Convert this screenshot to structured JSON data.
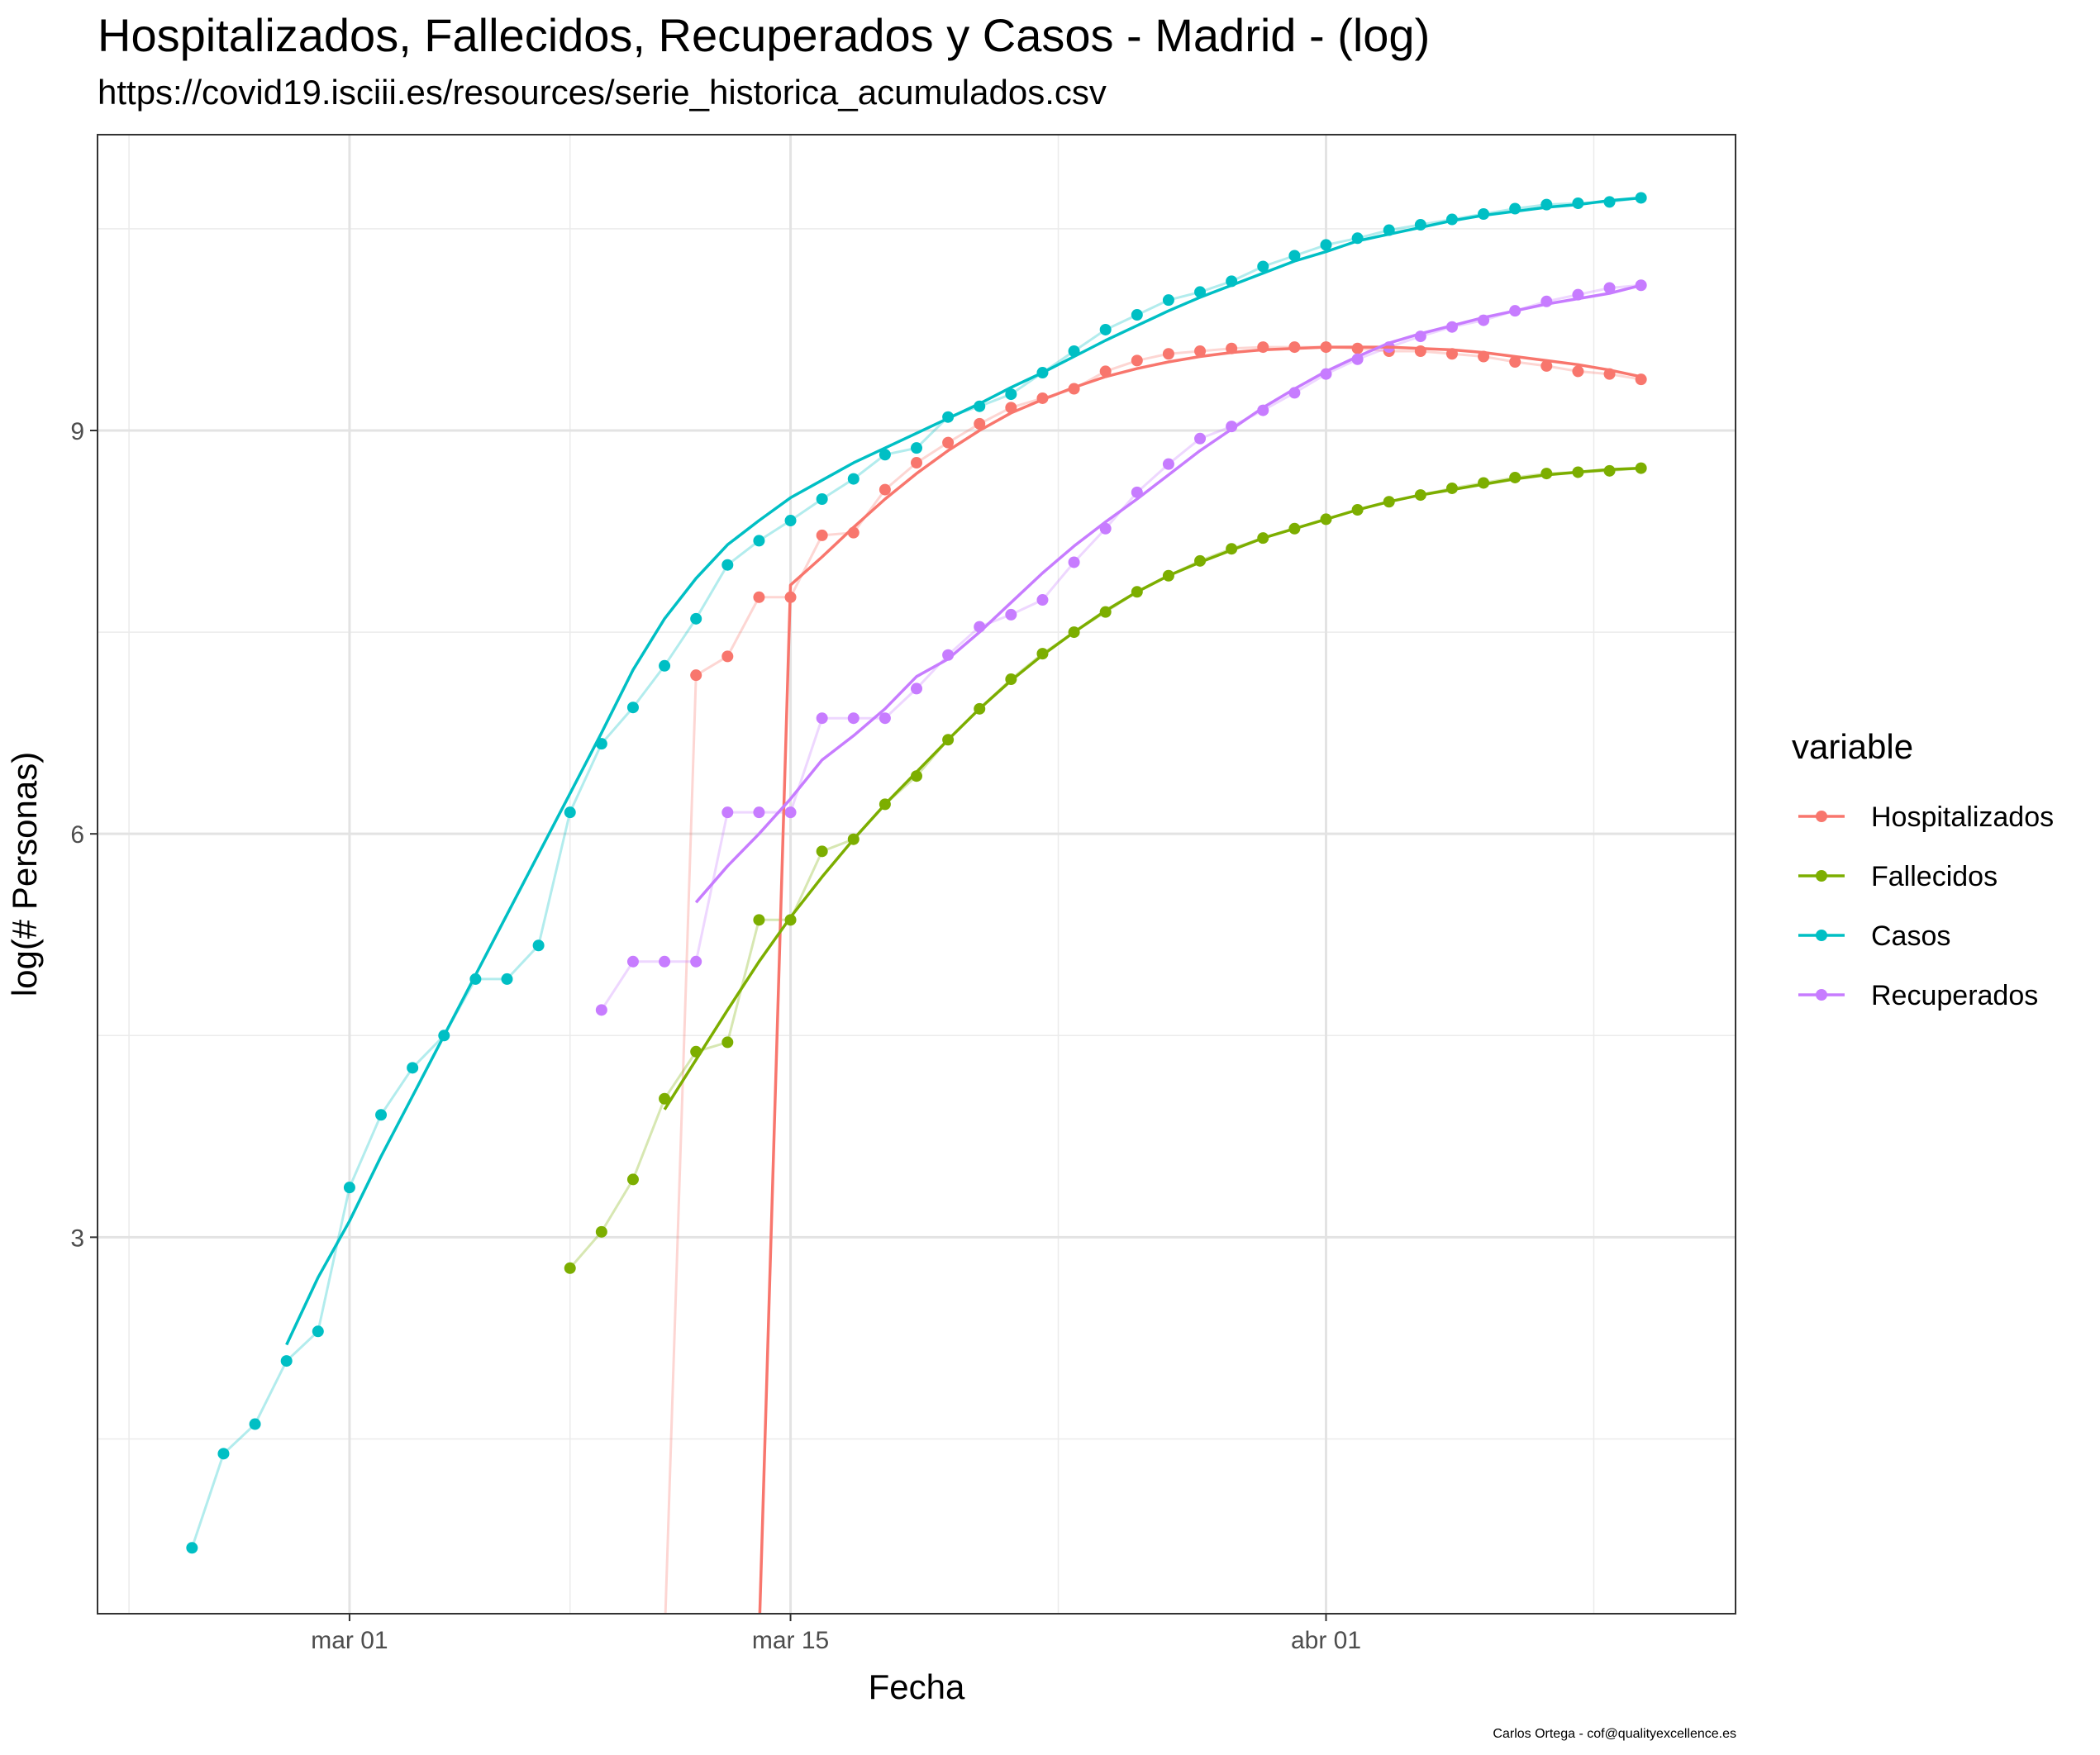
{
  "title": "Hospitalizados, Fallecidos, Recuperados y Casos - Madrid - (log)",
  "subtitle": "https://covid19.isciii.es/resources/serie_historica_acumulados.csv",
  "caption": "Carlos Ortega - cof@qualityexcellence.es",
  "chart_data": {
    "type": "line",
    "xlabel": "Fecha",
    "ylabel": "log(# Personas)",
    "x_tick_labels": [
      "mar 01",
      "mar 15",
      "abr 01"
    ],
    "x_ticks": [
      "2020-03-01",
      "2020-03-15",
      "2020-04-01"
    ],
    "y_ticks": [
      3,
      6,
      9
    ],
    "xlim": [
      "2020-02-22",
      "2020-04-14"
    ],
    "ylim": [
      0.2,
      11.2
    ],
    "grid": true,
    "legend_title": "variable",
    "legend_position": "right",
    "dates": [
      "2020-02-25",
      "2020-02-26",
      "2020-02-27",
      "2020-02-28",
      "2020-02-29",
      "2020-03-01",
      "2020-03-02",
      "2020-03-03",
      "2020-03-04",
      "2020-03-05",
      "2020-03-06",
      "2020-03-07",
      "2020-03-08",
      "2020-03-09",
      "2020-03-10",
      "2020-03-11",
      "2020-03-12",
      "2020-03-13",
      "2020-03-14",
      "2020-03-15",
      "2020-03-16",
      "2020-03-17",
      "2020-03-18",
      "2020-03-19",
      "2020-03-20",
      "2020-03-21",
      "2020-03-22",
      "2020-03-23",
      "2020-03-24",
      "2020-03-25",
      "2020-03-26",
      "2020-03-27",
      "2020-03-28",
      "2020-03-29",
      "2020-03-30",
      "2020-03-31",
      "2020-04-01",
      "2020-04-02",
      "2020-04-03",
      "2020-04-04",
      "2020-04-05",
      "2020-04-06",
      "2020-04-07",
      "2020-04-08",
      "2020-04-09",
      "2020-04-10",
      "2020-04-11"
    ],
    "series": [
      {
        "name": "Hospitalizados",
        "color": "#F8766D",
        "values": [
          null,
          null,
          null,
          null,
          null,
          null,
          null,
          null,
          null,
          null,
          null,
          null,
          null,
          null,
          0.0,
          0.0,
          7.18,
          7.32,
          7.76,
          7.76,
          8.22,
          8.24,
          8.56,
          8.76,
          8.91,
          9.05,
          9.17,
          9.24,
          9.31,
          9.44,
          9.52,
          9.57,
          9.59,
          9.61,
          9.62,
          9.62,
          9.62,
          9.61,
          9.59,
          9.59,
          9.57,
          9.55,
          9.51,
          9.48,
          9.44,
          9.42,
          9.38
        ],
        "trend": [
          null,
          null,
          null,
          null,
          null,
          null,
          null,
          null,
          null,
          null,
          null,
          null,
          null,
          null,
          null,
          null,
          null,
          null,
          0.0,
          7.85,
          8.06,
          8.28,
          8.49,
          8.68,
          8.85,
          9.0,
          9.13,
          9.23,
          9.32,
          9.4,
          9.46,
          9.51,
          9.55,
          9.58,
          9.6,
          9.61,
          9.62,
          9.62,
          9.62,
          9.61,
          9.6,
          9.58,
          9.55,
          9.52,
          9.49,
          9.45,
          9.4
        ]
      },
      {
        "name": "Fallecidos",
        "color": "#7CAE00",
        "values": [
          null,
          null,
          null,
          null,
          null,
          null,
          null,
          null,
          null,
          null,
          null,
          null,
          2.77,
          3.04,
          3.43,
          4.03,
          4.38,
          4.45,
          5.36,
          5.36,
          5.87,
          5.96,
          6.22,
          6.43,
          6.7,
          6.93,
          7.15,
          7.34,
          7.5,
          7.65,
          7.8,
          7.92,
          8.03,
          8.12,
          8.2,
          8.27,
          8.34,
          8.41,
          8.47,
          8.52,
          8.57,
          8.61,
          8.65,
          8.68,
          8.69,
          8.7,
          8.72
        ],
        "trend": [
          null,
          null,
          null,
          null,
          null,
          null,
          null,
          null,
          null,
          null,
          null,
          null,
          null,
          null,
          null,
          3.95,
          4.32,
          4.69,
          5.05,
          5.38,
          5.68,
          5.96,
          6.22,
          6.46,
          6.7,
          6.93,
          7.14,
          7.33,
          7.5,
          7.66,
          7.8,
          7.92,
          8.02,
          8.11,
          8.2,
          8.27,
          8.34,
          8.41,
          8.47,
          8.52,
          8.56,
          8.6,
          8.64,
          8.67,
          8.69,
          8.71,
          8.72
        ]
      },
      {
        "name": "Casos",
        "color": "#00BFC4",
        "values": [
          0.69,
          1.39,
          1.61,
          2.08,
          2.3,
          3.37,
          3.91,
          4.26,
          4.5,
          4.92,
          4.92,
          5.17,
          6.16,
          6.67,
          6.94,
          7.25,
          7.6,
          8.0,
          8.18,
          8.33,
          8.49,
          8.64,
          8.82,
          8.87,
          9.1,
          9.18,
          9.27,
          9.43,
          9.59,
          9.75,
          9.86,
          9.97,
          10.03,
          10.11,
          10.22,
          10.3,
          10.38,
          10.43,
          10.49,
          10.53,
          10.57,
          10.61,
          10.65,
          10.68,
          10.69,
          10.7,
          10.73
        ],
        "trend": [
          null,
          null,
          null,
          2.2,
          2.7,
          3.12,
          3.6,
          4.05,
          4.5,
          4.95,
          5.4,
          5.85,
          6.3,
          6.75,
          7.22,
          7.6,
          7.9,
          8.15,
          8.33,
          8.5,
          8.63,
          8.76,
          8.87,
          8.98,
          9.09,
          9.2,
          9.32,
          9.43,
          9.55,
          9.67,
          9.78,
          9.89,
          9.99,
          10.08,
          10.17,
          10.26,
          10.33,
          10.41,
          10.46,
          10.51,
          10.56,
          10.6,
          10.63,
          10.66,
          10.68,
          10.71,
          10.73
        ]
      },
      {
        "name": "Recuperados",
        "color": "#C77CFF",
        "values": [
          null,
          null,
          null,
          null,
          null,
          null,
          null,
          null,
          null,
          null,
          null,
          null,
          null,
          4.69,
          5.05,
          5.05,
          5.05,
          6.16,
          6.16,
          6.16,
          6.86,
          6.86,
          6.86,
          7.08,
          7.33,
          7.54,
          7.63,
          7.74,
          8.02,
          8.27,
          8.54,
          8.75,
          8.94,
          9.03,
          9.15,
          9.28,
          9.42,
          9.53,
          9.62,
          9.7,
          9.77,
          9.82,
          9.89,
          9.96,
          10.01,
          10.06,
          10.08
        ],
        "trend": [
          null,
          null,
          null,
          null,
          null,
          null,
          null,
          null,
          null,
          null,
          null,
          null,
          null,
          null,
          null,
          null,
          5.49,
          5.76,
          6.0,
          6.26,
          6.55,
          6.73,
          6.93,
          7.17,
          7.3,
          7.5,
          7.72,
          7.94,
          8.14,
          8.32,
          8.49,
          8.67,
          8.85,
          9.01,
          9.17,
          9.31,
          9.44,
          9.55,
          9.65,
          9.72,
          9.78,
          9.84,
          9.89,
          9.94,
          9.98,
          10.02,
          10.08
        ]
      }
    ]
  }
}
